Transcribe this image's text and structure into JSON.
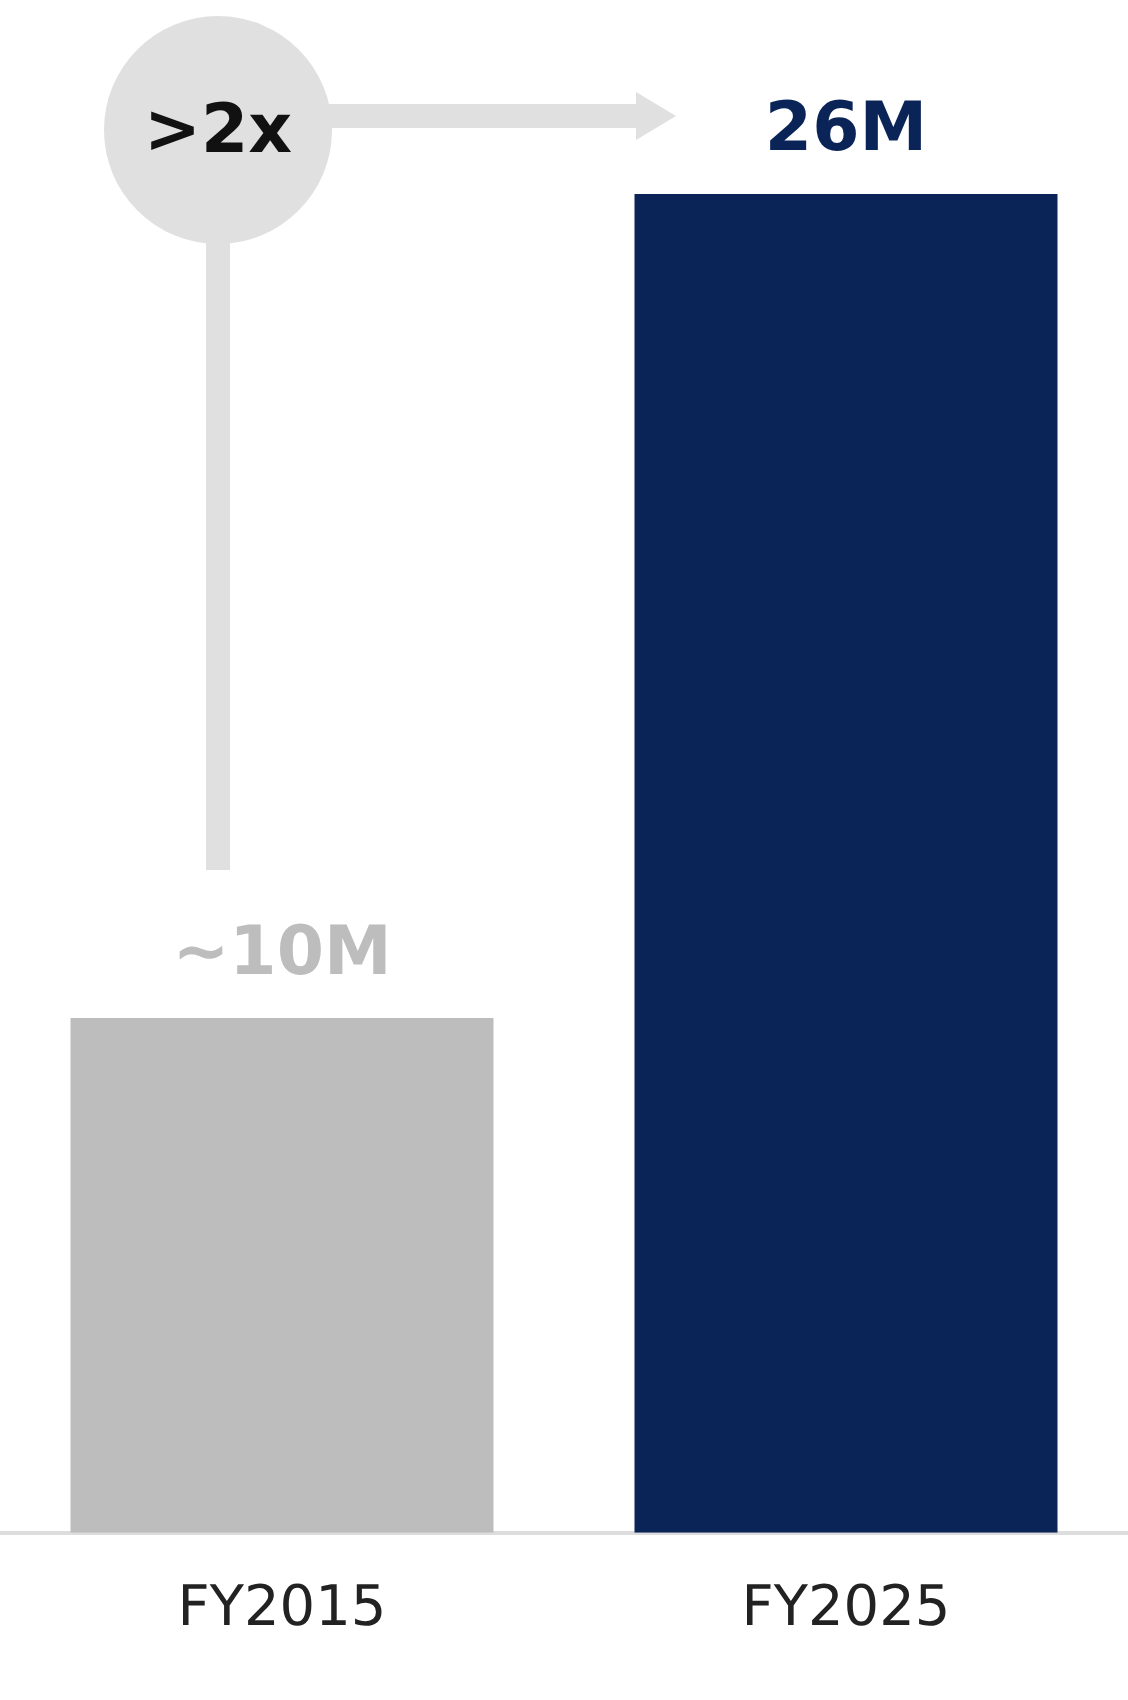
{
  "chart_data": {
    "type": "bar",
    "categories": [
      "FY2015",
      "FY2025"
    ],
    "values": [
      10,
      26
    ],
    "colors": [
      "#bdbdbd",
      "#0a2458"
    ],
    "value_labels": [
      "~10M",
      "26M"
    ],
    "annotations": [
      ">2x"
    ],
    "grid": false,
    "legend": false,
    "tick_labels": "x"
  }
}
